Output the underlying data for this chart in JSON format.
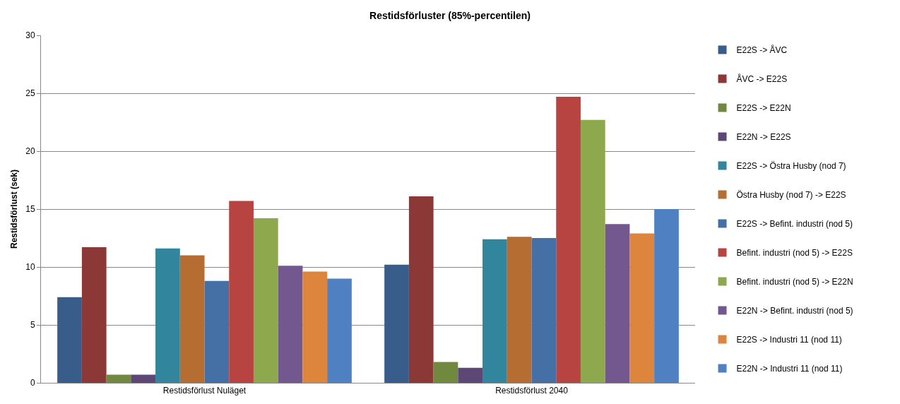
{
  "chart_data": {
    "type": "bar",
    "title": "Restidsförluster (85%-percentilen)",
    "ylabel": "Restidsförlust (sek)",
    "categories": [
      "Restidsförlust Nuläget",
      "Restidsförlust 2040"
    ],
    "ylim": [
      0,
      30
    ],
    "yticks": [
      0,
      5,
      10,
      15,
      20,
      25,
      30
    ],
    "grid": "y",
    "legend": "right",
    "series": [
      {
        "name": "E22S -> ÅVC",
        "color": "#385d8a",
        "values": [
          7.4,
          10.2
        ]
      },
      {
        "name": "ÅVC -> E22S",
        "color": "#8c3836",
        "values": [
          11.7,
          16.1
        ]
      },
      {
        "name": "E22S -> E22N",
        "color": "#71893f",
        "values": [
          0.7,
          1.8
        ]
      },
      {
        "name": "E22N -> E22S",
        "color": "#5c4776",
        "values": [
          0.7,
          1.3
        ]
      },
      {
        "name": "E22S -> Östra Husby (nod 7)",
        "color": "#31859c",
        "values": [
          11.6,
          12.4
        ]
      },
      {
        "name": "Östra Husby (nod 7) -> E22S",
        "color": "#b66d31",
        "values": [
          11.0,
          12.6
        ]
      },
      {
        "name": "E22S -> Befint. industri (nod 5)",
        "color": "#4470a6",
        "values": [
          8.8,
          12.5
        ]
      },
      {
        "name": "Befint. industri (nod 5) -> E22S",
        "color": "#b84442",
        "values": [
          15.7,
          24.7
        ]
      },
      {
        "name": "Befint. industri (nod 5) -> E22N",
        "color": "#8ea84e",
        "values": [
          14.2,
          22.7
        ]
      },
      {
        "name": "E22N -> Befint. industri (nod 5)",
        "color": "#73588f",
        "values": [
          10.1,
          13.7
        ]
      },
      {
        "name": "E22S -> Industri 11 (nod 11)",
        "color": "#dd853c",
        "values": [
          9.6,
          12.9
        ]
      },
      {
        "name": "E22N -> Industri 11 (nod 11)",
        "color": "#4f81c2",
        "values": [
          9.0,
          15.0
        ]
      }
    ]
  }
}
